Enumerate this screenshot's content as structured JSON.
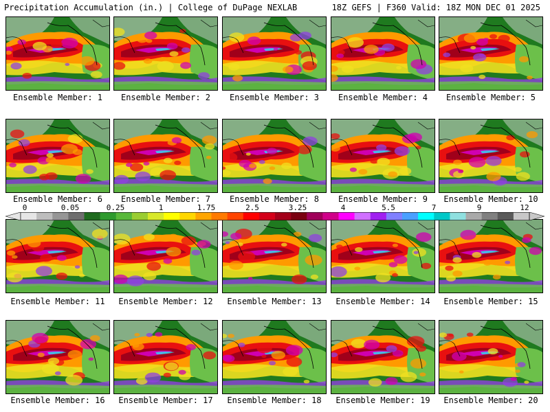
{
  "header": {
    "left": "Precipitation Accumulation (in.) | College of DuPage NEXLAB",
    "right": "18Z GEFS | F360 Valid: 18Z MON DEC 01 2025"
  },
  "members": [
    {
      "label": "Ensemble Member: 1"
    },
    {
      "label": "Ensemble Member: 2"
    },
    {
      "label": "Ensemble Member: 3"
    },
    {
      "label": "Ensemble Member: 4"
    },
    {
      "label": "Ensemble Member: 5"
    },
    {
      "label": "Ensemble Member: 6"
    },
    {
      "label": "Ensemble Member: 7"
    },
    {
      "label": "Ensemble Member: 8"
    },
    {
      "label": "Ensemble Member: 9"
    },
    {
      "label": "Ensemble Member: 10"
    },
    {
      "label": "Ensemble Member: 11"
    },
    {
      "label": "Ensemble Member: 12"
    },
    {
      "label": "Ensemble Member: 13"
    },
    {
      "label": "Ensemble Member: 14"
    },
    {
      "label": "Ensemble Member: 15"
    },
    {
      "label": "Ensemble Member: 16"
    },
    {
      "label": "Ensemble Member: 17"
    },
    {
      "label": "Ensemble Member: 18"
    },
    {
      "label": "Ensemble Member: 19"
    },
    {
      "label": "Ensemble Member: 20"
    }
  ],
  "colorbar": {
    "labels": [
      "0",
      "0.05",
      "0.25",
      "1",
      "1.75",
      "2.5",
      "3.25",
      "4",
      "5.5",
      "7",
      "9",
      "12"
    ],
    "colors": [
      "#e6e6e6",
      "#bdbdbd",
      "#969696",
      "#6e6e6e",
      "#1e6b1e",
      "#2e9a2e",
      "#58b83a",
      "#9acd32",
      "#d8e82a",
      "#ffff00",
      "#ffd700",
      "#ffa500",
      "#ff7a00",
      "#ff4500",
      "#ff0000",
      "#d4001a",
      "#a3001a",
      "#7a0010",
      "#a0005a",
      "#d0008a",
      "#ff00ff",
      "#d070ff",
      "#a020f0",
      "#8080ff",
      "#4aa0ff",
      "#00ffff",
      "#00c8c8",
      "#8fe0e0",
      "#a9a9a9",
      "#808080",
      "#5a5a5a",
      "#c8c8c8"
    ]
  },
  "map_colors": {
    "land": "#1f7a1f",
    "light_land": "#6cc04a",
    "snow": "#d8d8d8",
    "yellow": "#f0e020",
    "orange": "#ff9a00",
    "red": "#e81010",
    "darkred": "#a0001a",
    "magenta": "#d000b0",
    "violet": "#9040e0",
    "cyan": "#30d8f0",
    "coast": "#000000"
  }
}
